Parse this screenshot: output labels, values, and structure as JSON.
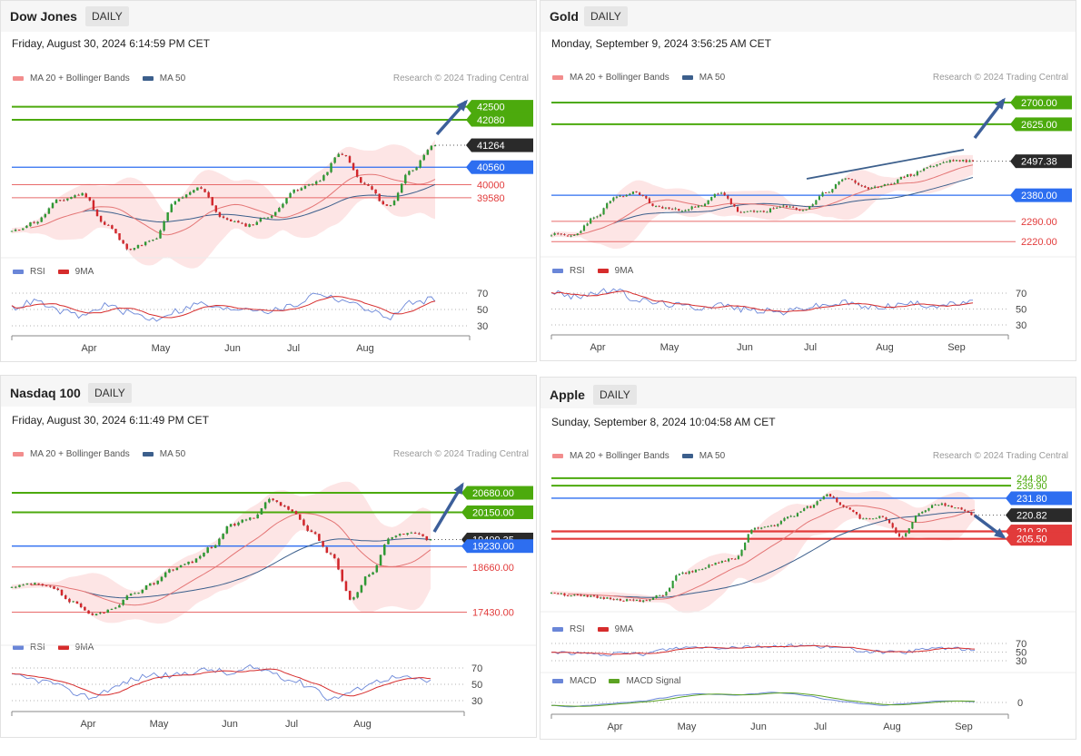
{
  "colors": {
    "ma20": "#e47575",
    "ma50": "#3c5f8c",
    "band": "#fde1e1",
    "green": "#4caa0d",
    "blue": "#2d6ef0",
    "red": "#e23b3b",
    "dark": "#2a2a2a",
    "rsi": "#6a86d8",
    "ma9": "#d62c2c",
    "macd": "#6a86d8",
    "macdsig": "#5ca323",
    "arrow": "#3c5f9a",
    "bull": "#2e9933",
    "bear": "#d2262b"
  },
  "icons": [
    "arrow-up-icon",
    "arrow-down-icon"
  ],
  "labels": {
    "ma20": "MA 20 + Bollinger Bands",
    "ma50": "MA 50",
    "rsi": "RSI",
    "ma9": "9MA",
    "macd": "MACD",
    "macdsig": "MACD Signal",
    "credit": "Research © 2024 Trading Central"
  },
  "chart_data": [
    {
      "type": "candlestick",
      "title": "Dow Jones",
      "interval": "DAILY",
      "timestamp": "Friday, August 30, 2024 6:14:59 PM CET",
      "months": [
        "Apr",
        "May",
        "Jun",
        "Jul",
        "Aug"
      ],
      "price_range": [
        37800,
        43100
      ],
      "price_series": {
        "anchors": [
          38500,
          38800,
          39500,
          39700,
          38700,
          37950,
          38200,
          39500,
          39900,
          38900,
          38700,
          39000,
          39800,
          40100,
          41000,
          40000,
          39300,
          40500,
          41264
        ],
        "last": 41264
      },
      "levels": [
        {
          "value": 42500,
          "label": "42500",
          "kind": "resistance"
        },
        {
          "value": 42080,
          "label": "42080",
          "kind": "resistance"
        },
        {
          "value": 41264,
          "label": "41264",
          "kind": "last"
        },
        {
          "value": 40560,
          "label": "40560",
          "kind": "pivot"
        },
        {
          "value": 40000,
          "label": "40000",
          "kind": "support"
        },
        {
          "value": 39580,
          "label": "39580",
          "kind": "support"
        }
      ],
      "forecast": {
        "direction": "up",
        "target": 42500
      },
      "rsi": {
        "levels": [
          70,
          50,
          30
        ],
        "anchors": [
          52,
          60,
          48,
          42,
          55,
          46,
          38,
          48,
          57,
          50,
          52,
          48,
          55,
          70,
          62,
          52,
          40,
          58,
          63
        ]
      },
      "legend": [
        "MA 20 + Bollinger Bands",
        "MA 50"
      ]
    },
    {
      "type": "candlestick",
      "title": "Gold",
      "interval": "DAILY",
      "timestamp": "Monday, September 9, 2024 3:56:25 AM CET",
      "months": [
        "Apr",
        "May",
        "Jun",
        "Jul",
        "Aug",
        "Sep"
      ],
      "price_range": [
        2180,
        2750
      ],
      "price_series": {
        "anchors": [
          2245,
          2240,
          2300,
          2370,
          2390,
          2340,
          2330,
          2340,
          2390,
          2320,
          2325,
          2340,
          2330,
          2390,
          2440,
          2400,
          2420,
          2450,
          2480,
          2500,
          2497.38
        ],
        "last": 2497.38
      },
      "levels": [
        {
          "value": 2700.0,
          "label": "2700.00",
          "kind": "resistance"
        },
        {
          "value": 2625.0,
          "label": "2625.00",
          "kind": "resistance"
        },
        {
          "value": 2497.38,
          "label": "2497.38",
          "kind": "last"
        },
        {
          "value": 2380.0,
          "label": "2380.00",
          "kind": "pivot"
        },
        {
          "value": 2290.0,
          "label": "2290.00",
          "kind": "support"
        },
        {
          "value": 2220.0,
          "label": "2220.00",
          "kind": "support"
        }
      ],
      "forecast": {
        "direction": "up",
        "target": 2700.0
      },
      "rsi": {
        "levels": [
          70,
          50,
          30
        ],
        "anchors": [
          72,
          65,
          70,
          74,
          62,
          58,
          55,
          52,
          56,
          50,
          48,
          46,
          52,
          55,
          58,
          52,
          54,
          57,
          55,
          56,
          58
        ]
      },
      "legend": [
        "MA 20 + Bollinger Bands",
        "MA 50"
      ]
    },
    {
      "type": "candlestick",
      "title": "Nasdaq 100",
      "interval": "DAILY",
      "timestamp": "Friday, August 30, 2024 6:11:49 PM CET",
      "months": [
        "Apr",
        "May",
        "Jun",
        "Jul",
        "Aug"
      ],
      "price_range": [
        16900,
        21150
      ],
      "price_series": {
        "anchors": [
          18100,
          18200,
          18100,
          17700,
          17350,
          17500,
          17900,
          18200,
          18600,
          18800,
          19200,
          19800,
          20000,
          20500,
          20200,
          19600,
          19000,
          17800,
          18500,
          19500,
          19600,
          19409.35
        ],
        "last": 19409.35
      },
      "levels": [
        {
          "value": 20680.0,
          "label": "20680.00",
          "kind": "resistance"
        },
        {
          "value": 20150.0,
          "label": "20150.00",
          "kind": "resistance"
        },
        {
          "value": 19409.35,
          "label": "19409.35",
          "kind": "last"
        },
        {
          "value": 19230.0,
          "label": "19230.00",
          "kind": "pivot"
        },
        {
          "value": 18660.0,
          "label": "18660.00",
          "kind": "support"
        },
        {
          "value": 17430.0,
          "label": "17430.00",
          "kind": "support"
        }
      ],
      "forecast": {
        "direction": "up",
        "target": 20680.0
      },
      "rsi": {
        "levels": [
          70,
          50,
          30
        ],
        "anchors": [
          60,
          56,
          52,
          40,
          34,
          45,
          55,
          62,
          60,
          65,
          68,
          62,
          70,
          66,
          55,
          48,
          32,
          40,
          52,
          58,
          57,
          54
        ]
      },
      "legend": [
        "MA 20 + Bollinger Bands",
        "MA 50"
      ]
    },
    {
      "type": "candlestick",
      "title": "Apple",
      "interval": "DAILY",
      "timestamp": "Sunday, September 8, 2024 10:04:58 AM CET",
      "months": [
        "Apr",
        "May",
        "Jun",
        "Jul",
        "Aug",
        "Sep"
      ],
      "price_range": [
        163,
        250
      ],
      "price_series": {
        "anchors": [
          171,
          169,
          168,
          167,
          166,
          165,
          169,
          183,
          185,
          190,
          193,
          212,
          214,
          220,
          226,
          234,
          226,
          218,
          220,
          206,
          222,
          228,
          226,
          220.82
        ],
        "last": 220.82
      },
      "levels": [
        {
          "value": 244.8,
          "label": "244.80",
          "kind": "resistance"
        },
        {
          "value": 239.9,
          "label": "239.90",
          "kind": "resistance"
        },
        {
          "value": 231.8,
          "label": "231.80",
          "kind": "pivot"
        },
        {
          "value": 220.82,
          "label": "220.82",
          "kind": "last"
        },
        {
          "value": 210.3,
          "label": "210.30",
          "kind": "support"
        },
        {
          "value": 205.5,
          "label": "205.50",
          "kind": "support"
        }
      ],
      "forecast": {
        "direction": "down",
        "target": 205.5
      },
      "rsi": {
        "levels": [
          70,
          50,
          30
        ],
        "anchors": [
          50,
          48,
          46,
          44,
          47,
          45,
          55,
          60,
          62,
          60,
          62,
          64,
          62,
          66,
          64,
          62,
          58,
          52,
          50,
          48,
          55,
          60,
          58,
          54
        ]
      },
      "macd": {
        "zero_label": "0",
        "anchors": [
          -2.0,
          -3.0,
          -2.0,
          -1.0,
          0.0,
          1.0,
          3.0,
          5.0,
          6.0,
          5.5,
          5.0,
          6.0,
          7.0,
          6.0,
          4.5,
          2.0,
          0.5,
          -1.0,
          -2.0,
          -1.0,
          0.0,
          1.0,
          1.0,
          0.5
        ]
      },
      "legend": [
        "MA 20 + Bollinger Bands",
        "MA 50"
      ]
    }
  ]
}
